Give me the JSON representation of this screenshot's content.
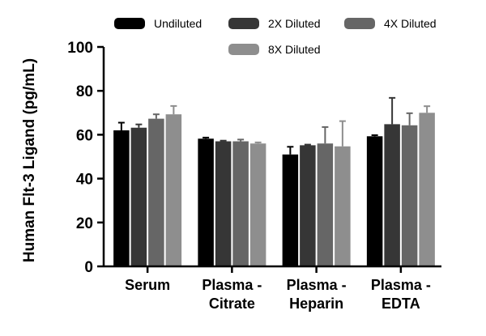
{
  "chart_data": {
    "type": "bar",
    "categories": [
      [
        "Serum"
      ],
      [
        "Plasma -",
        "Citrate"
      ],
      [
        "Plasma -",
        "Heparin"
      ],
      [
        "Plasma -",
        "EDTA"
      ]
    ],
    "ylabel": "Human Flt-3 Ligand (pg/mL)",
    "xlabel": "",
    "ylim": [
      0,
      100
    ],
    "yticks": [
      0,
      20,
      40,
      60,
      80,
      100
    ],
    "grid": false,
    "legend_position": "top",
    "series": [
      {
        "name": "Undiluted",
        "color": "#000000",
        "values": [
          62.0,
          58.2,
          51.0,
          59.3
        ],
        "errors": [
          3.5,
          0.5,
          3.5,
          0.5
        ]
      },
      {
        "name": "2X Diluted",
        "color": "#363636",
        "values": [
          63.2,
          57.0,
          55.2,
          64.8
        ],
        "errors": [
          1.5,
          0.3,
          0.3,
          12.0
        ]
      },
      {
        "name": "4X Diluted",
        "color": "#666666",
        "values": [
          67.3,
          57.0,
          56.0,
          64.3
        ],
        "errors": [
          2.0,
          0.8,
          7.5,
          5.5
        ]
      },
      {
        "name": "8X Diluted",
        "color": "#8e8e8e",
        "values": [
          69.3,
          56.0,
          54.7,
          70.0
        ],
        "errors": [
          3.8,
          0.5,
          11.5,
          3.0
        ]
      }
    ]
  }
}
